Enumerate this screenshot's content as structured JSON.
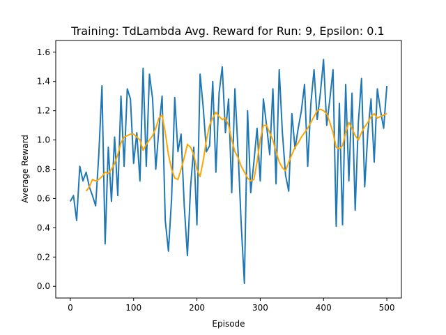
{
  "chart_data": {
    "type": "line",
    "title": "Training: TdLambda Avg. Reward for Run: 9, Epsilon: 0.1",
    "xlabel": "Episode",
    "ylabel": "Average Reward",
    "xlim": [
      -23,
      523
    ],
    "ylim": [
      -0.08,
      1.68
    ],
    "xticks": [
      0,
      100,
      200,
      300,
      400,
      500
    ],
    "yticks": [
      0.0,
      0.2,
      0.4,
      0.6,
      0.8,
      1.0,
      1.2,
      1.4,
      1.6
    ],
    "grid": false,
    "series": [
      {
        "color": "#1f77b4",
        "x": [
          0,
          5,
          10,
          15,
          20,
          25,
          30,
          35,
          40,
          45,
          50,
          55,
          60,
          65,
          70,
          75,
          80,
          85,
          90,
          95,
          100,
          105,
          110,
          115,
          120,
          125,
          130,
          135,
          140,
          145,
          150,
          155,
          160,
          165,
          170,
          175,
          180,
          185,
          190,
          195,
          200,
          205,
          210,
          215,
          220,
          225,
          230,
          235,
          240,
          245,
          250,
          255,
          260,
          265,
          270,
          275,
          280,
          285,
          290,
          295,
          300,
          305,
          310,
          315,
          320,
          325,
          330,
          335,
          340,
          345,
          350,
          355,
          360,
          365,
          370,
          375,
          380,
          385,
          390,
          395,
          400,
          405,
          410,
          415,
          420,
          425,
          430,
          435,
          440,
          445,
          450,
          455,
          460,
          465,
          470,
          475,
          480,
          485,
          490,
          495,
          500
        ],
        "values": [
          0.58,
          0.62,
          0.45,
          0.82,
          0.72,
          0.78,
          0.68,
          0.62,
          0.55,
          0.9,
          1.37,
          0.29,
          0.95,
          0.58,
          1.02,
          0.62,
          1.3,
          0.82,
          1.35,
          1.28,
          0.84,
          1.05,
          0.72,
          1.49,
          0.82,
          1.45,
          1.28,
          0.8,
          1.08,
          1.3,
          0.45,
          0.24,
          0.6,
          1.29,
          0.92,
          1.04,
          0.55,
          0.21,
          0.68,
          0.95,
          0.42,
          1.45,
          1.22,
          0.92,
          0.96,
          1.4,
          0.78,
          1.32,
          1.5,
          1.05,
          1.28,
          0.64,
          1.35,
          0.92,
          0.42,
          0.02,
          1.2,
          0.64,
          0.85,
          1.08,
          0.72,
          1.28,
          1.1,
          0.9,
          1.35,
          0.7,
          1.48,
          1.05,
          0.76,
          0.65,
          1.18,
          0.94,
          1.08,
          1.2,
          1.38,
          0.82,
          1.25,
          1.48,
          1.14,
          1.32,
          1.55,
          1.1,
          1.28,
          1.48,
          0.41,
          1.25,
          0.42,
          1.38,
          0.72,
          1.32,
          0.52,
          1.12,
          1.42,
          0.68,
          1.05,
          1.28,
          0.85,
          1.35,
          1.2,
          1.08,
          1.37
        ]
      },
      {
        "color": "#ffa500",
        "x": [
          25,
          30,
          35,
          40,
          45,
          50,
          55,
          60,
          65,
          70,
          75,
          80,
          85,
          90,
          95,
          100,
          105,
          110,
          115,
          120,
          125,
          130,
          135,
          140,
          145,
          150,
          155,
          160,
          165,
          170,
          175,
          180,
          185,
          190,
          195,
          200,
          205,
          210,
          215,
          220,
          225,
          230,
          235,
          240,
          245,
          250,
          255,
          260,
          265,
          270,
          275,
          280,
          285,
          290,
          295,
          300,
          305,
          310,
          315,
          320,
          325,
          330,
          335,
          340,
          345,
          350,
          355,
          360,
          365,
          370,
          375,
          380,
          385,
          390,
          395,
          400,
          405,
          410,
          415,
          420,
          425,
          430,
          435,
          440,
          445,
          450,
          455,
          460,
          465,
          470,
          475,
          480,
          485,
          490,
          495,
          500
        ],
        "values": [
          0.65,
          0.68,
          0.73,
          0.72,
          0.73,
          0.75,
          0.78,
          0.77,
          0.8,
          0.84,
          0.9,
          0.98,
          1.02,
          1.03,
          1.04,
          1.04,
          1.02,
          1.0,
          0.93,
          0.97,
          1.0,
          1.03,
          1.08,
          1.15,
          1.17,
          1.05,
          0.9,
          0.8,
          0.74,
          0.73,
          0.8,
          0.88,
          0.97,
          0.95,
          0.9,
          0.8,
          0.75,
          0.86,
          1.0,
          1.1,
          1.15,
          1.19,
          1.16,
          1.14,
          1.15,
          1.1,
          1.0,
          0.92,
          0.88,
          0.82,
          0.78,
          0.74,
          0.72,
          0.73,
          0.85,
          1.0,
          1.1,
          1.1,
          1.05,
          1.0,
          0.92,
          0.85,
          0.81,
          0.79,
          0.85,
          0.9,
          0.95,
          0.98,
          1.02,
          1.05,
          1.08,
          1.12,
          1.16,
          1.2,
          1.21,
          1.2,
          1.18,
          1.12,
          1.05,
          0.95,
          0.94,
          0.96,
          1.05,
          1.12,
          1.08,
          1.03,
          1.0,
          1.05,
          1.09,
          1.12,
          1.16,
          1.18,
          1.15,
          1.16,
          1.17,
          1.18
        ]
      }
    ]
  }
}
